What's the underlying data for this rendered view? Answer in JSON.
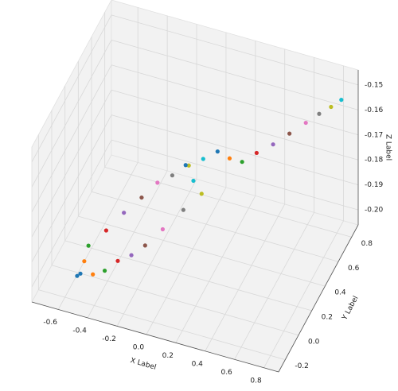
{
  "chart_data": {
    "type": "scatter3d",
    "x_label": "X Label",
    "y_label": "Y Label",
    "z_label": "Z Label",
    "xlim": [
      -0.78,
      0.9
    ],
    "ylim": [
      -0.3,
      0.9
    ],
    "zlim": [
      -0.206,
      -0.144
    ],
    "xticks": [
      -0.6,
      -0.4,
      -0.2,
      {
        "value": 0,
        "label": "0.0"
      },
      0.2,
      0.4,
      0.6,
      0.8
    ],
    "yticks": [
      -0.2,
      {
        "value": 0,
        "label": "0.0"
      },
      0.2,
      0.4,
      0.6,
      0.8
    ],
    "zticks": [
      {
        "value": -0.2,
        "label": "-0.20"
      },
      -0.19,
      -0.18,
      -0.17,
      -0.16,
      -0.15
    ],
    "grid": true,
    "colors": [
      "#1f77b4",
      "#ff7f0e",
      "#2ca02c",
      "#d62728",
      "#9467bd",
      "#8c564b",
      "#e377c2",
      "#7f7f7f",
      "#bcbd22",
      "#17becf"
    ],
    "x": [
      -0.56,
      -0.545,
      -0.53,
      -0.45,
      -0.37,
      -0.29,
      -0.22,
      -0.14,
      -0.05,
      0.03,
      0.107,
      0.16,
      0.213,
      0.31,
      0.42,
      0.53,
      0.64,
      0.73,
      0.81,
      0.88,
      -0.58,
      -0.5,
      -0.442,
      -0.38,
      -0.31,
      -0.244,
      -0.16,
      -0.06,
      0.028,
      -0.03,
      -0.086
    ],
    "y": [
      -0.055,
      -0.03,
      0.0,
      0.09,
      0.18,
      0.27,
      0.354,
      0.4,
      0.45,
      0.49,
      0.536,
      0.6,
      0.671,
      0.675,
      0.68,
      0.683,
      0.686,
      0.688,
      0.69,
      0.69,
      -0.06,
      0.0,
      0.05,
      0.11,
      0.16,
      0.221,
      0.3,
      0.39,
      0.47,
      0.475,
      0.482
    ],
    "z": [
      -0.203,
      -0.199,
      -0.194,
      -0.191,
      -0.187,
      -0.184,
      -0.181,
      -0.179,
      -0.176,
      -0.174,
      -0.172,
      -0.177,
      -0.181,
      -0.176,
      -0.171,
      -0.165,
      -0.159,
      -0.154,
      -0.15,
      -0.146,
      -0.204,
      -0.205,
      -0.205,
      -0.203,
      -0.202,
      -0.2,
      -0.196,
      -0.191,
      -0.187,
      -0.183,
      -0.178
    ]
  }
}
